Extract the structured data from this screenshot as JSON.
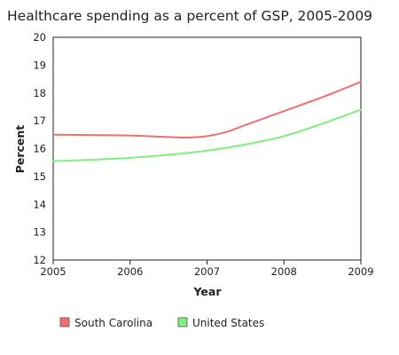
{
  "chart_data": {
    "type": "line",
    "title": "Healthcare spending as a percent of GSP, 2005-2009",
    "xlabel": "Year",
    "ylabel": "Percent",
    "xlim": [
      2005,
      2009
    ],
    "ylim": [
      12,
      20
    ],
    "x_ticks": [
      "2005",
      "2006",
      "2007",
      "2008",
      "2009"
    ],
    "y_ticks": [
      "12",
      "13",
      "14",
      "15",
      "16",
      "17",
      "18",
      "19",
      "20"
    ],
    "grid": false,
    "legend_position": "bottom-left",
    "series": [
      {
        "name": "South Carolina",
        "color": "#f07070",
        "x": [
          2005,
          2005.5,
          2006,
          2006.5,
          2006.75,
          2007,
          2007.25,
          2007.5,
          2008,
          2008.5,
          2009
        ],
        "y": [
          16.5,
          16.49,
          16.47,
          16.42,
          16.4,
          16.45,
          16.6,
          16.85,
          17.35,
          17.85,
          18.4
        ]
      },
      {
        "name": "United States",
        "color": "#80f080",
        "x": [
          2005,
          2005.5,
          2006,
          2006.5,
          2007,
          2007.5,
          2008,
          2008.5,
          2009
        ],
        "y": [
          15.55,
          15.6,
          15.67,
          15.78,
          15.93,
          16.15,
          16.45,
          16.9,
          17.4
        ]
      }
    ]
  }
}
